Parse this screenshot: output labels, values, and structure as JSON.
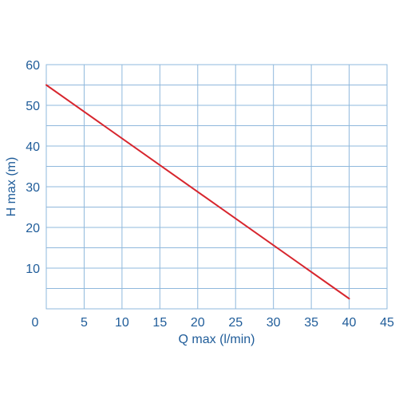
{
  "chart_data": {
    "type": "line",
    "xlabel": "Q max (l/min)",
    "ylabel": "H max (m)",
    "xlim": [
      0,
      45
    ],
    "ylim": [
      0,
      60
    ],
    "x_ticks": [
      0,
      5,
      10,
      15,
      20,
      25,
      30,
      35,
      40,
      45
    ],
    "y_ticks": [
      10,
      20,
      30,
      40,
      50,
      60
    ],
    "x_tick_labels": [
      "0",
      "5",
      "10",
      "15",
      "20",
      "25",
      "30",
      "35",
      "40",
      "45"
    ],
    "y_tick_labels": [
      "10",
      "20",
      "30",
      "40",
      "50",
      "60"
    ],
    "grid": true,
    "series": [
      {
        "x": [
          0,
          40
        ],
        "y": [
          55,
          2.5
        ],
        "color": "#d7262e"
      }
    ]
  }
}
